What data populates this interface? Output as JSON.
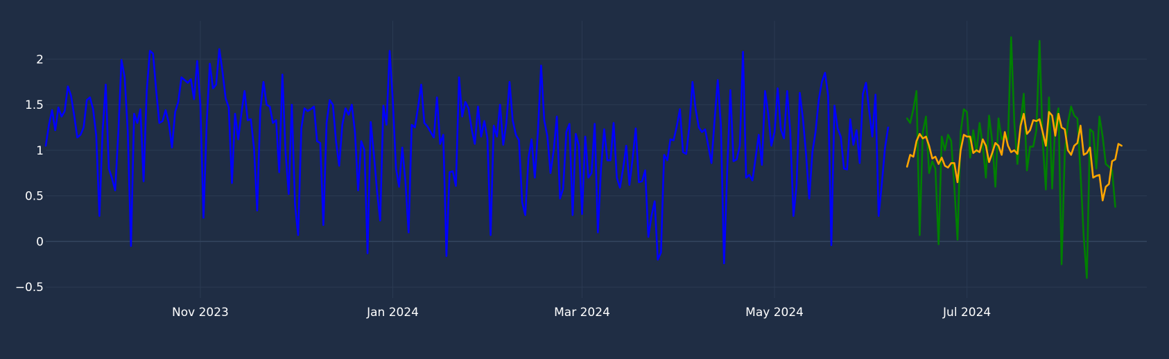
{
  "chart_data": {
    "type": "line",
    "x_start": "2023-09-13",
    "x_range": [
      "2023-09-13",
      "2024-08-27"
    ],
    "ylim": [
      -0.62,
      2.42
    ],
    "grid": true,
    "background": "#1f2d44",
    "grid_color": "#2b3b52",
    "tick_color": "#ffffff",
    "x_ticks": [
      {
        "date": "2023-11-01",
        "label": "Nov 2023"
      },
      {
        "date": "2024-01-01",
        "label": "Jan 2024"
      },
      {
        "date": "2024-03-01",
        "label": "Mar 2024"
      },
      {
        "date": "2024-05-01",
        "label": "May 2024"
      },
      {
        "date": "2024-07-01",
        "label": "Jul 2024"
      }
    ],
    "y_ticks": [
      {
        "value": -0.5,
        "label": "−0.5"
      },
      {
        "value": 0,
        "label": "0"
      },
      {
        "value": 0.5,
        "label": "0.5"
      },
      {
        "value": 1,
        "label": "1"
      },
      {
        "value": 1.5,
        "label": "1.5"
      },
      {
        "value": 2,
        "label": "2"
      }
    ],
    "series": [
      {
        "color": "#0000ff",
        "start": "2023-09-13",
        "values": [
          1.05,
          1.28,
          1.44,
          1.22,
          1.47,
          1.37,
          1.43,
          1.7,
          1.6,
          1.38,
          1.14,
          1.17,
          1.25,
          1.55,
          1.58,
          1.45,
          1.16,
          0.28,
          1.2,
          1.72,
          0.8,
          0.69,
          0.56,
          1.2,
          1.99,
          1.8,
          1.2,
          -0.05,
          1.4,
          1.3,
          1.45,
          0.66,
          1.65,
          2.09,
          2.06,
          1.65,
          1.3,
          1.32,
          1.44,
          1.3,
          1.03,
          1.42,
          1.53,
          1.8,
          1.77,
          1.74,
          1.78,
          1.56,
          1.98,
          1.5,
          0.26,
          1.3,
          1.95,
          1.68,
          1.72,
          2.11,
          1.87,
          1.57,
          1.47,
          0.64,
          1.4,
          1.12,
          1.4,
          1.65,
          1.33,
          1.34,
          1.03,
          0.34,
          1.44,
          1.75,
          1.5,
          1.48,
          1.3,
          1.33,
          0.76,
          1.83,
          0.98,
          0.52,
          1.5,
          0.4,
          0.07,
          1.24,
          1.46,
          1.43,
          1.45,
          1.48,
          1.1,
          1.08,
          0.18,
          1.3,
          1.55,
          1.5,
          1.1,
          0.83,
          1.28,
          1.46,
          1.39,
          1.5,
          1.2,
          0.56,
          1.1,
          1.0,
          -0.13,
          1.31,
          0.96,
          0.55,
          0.23,
          1.49,
          1.28,
          2.09,
          1.55,
          0.8,
          0.6,
          1.03,
          0.66,
          0.1,
          1.28,
          1.25,
          1.47,
          1.72,
          1.3,
          1.26,
          1.2,
          1.14,
          1.58,
          1.07,
          1.17,
          -0.16,
          0.76,
          0.77,
          0.61,
          1.8,
          1.37,
          1.53,
          1.46,
          1.23,
          1.07,
          1.48,
          1.15,
          1.32,
          1.13,
          0.07,
          1.27,
          1.15,
          1.5,
          1.06,
          1.3,
          1.75,
          1.33,
          1.17,
          1.11,
          0.43,
          0.29,
          0.92,
          1.12,
          0.7,
          1.2,
          1.93,
          1.33,
          1.15,
          0.75,
          1.0,
          1.37,
          0.47,
          0.58,
          1.2,
          1.29,
          0.29,
          1.18,
          1.05,
          0.3,
          1.15,
          0.7,
          0.75,
          1.29,
          0.1,
          0.8,
          1.23,
          0.89,
          0.89,
          1.3,
          0.7,
          0.59,
          0.8,
          1.05,
          0.62,
          0.9,
          1.24,
          0.65,
          0.66,
          0.78,
          0.05,
          0.28,
          0.44,
          -0.2,
          -0.12,
          0.95,
          0.89,
          1.12,
          1.11,
          1.26,
          1.45,
          0.98,
          0.96,
          1.26,
          1.75,
          1.45,
          1.25,
          1.2,
          1.23,
          1.05,
          0.86,
          1.33,
          1.77,
          1.28,
          -0.24,
          0.77,
          1.66,
          0.88,
          0.9,
          1.05,
          2.08,
          0.7,
          0.73,
          0.67,
          0.92,
          1.17,
          0.84,
          1.65,
          1.4,
          1.05,
          1.2,
          1.68,
          1.23,
          1.13,
          1.65,
          1.2,
          0.28,
          0.62,
          1.63,
          1.35,
          0.95,
          0.47,
          0.98,
          1.2,
          1.55,
          1.75,
          1.85,
          1.6,
          -0.04,
          1.49,
          1.24,
          1.15,
          0.8,
          0.79,
          1.34,
          1.06,
          1.22,
          0.86,
          1.62,
          1.74,
          1.43,
          1.15,
          1.61,
          0.28,
          0.63,
          1.02,
          1.25
        ]
      },
      {
        "color": "#008000",
        "start": "2024-06-12",
        "values": [
          1.35,
          1.3,
          1.45,
          1.65,
          0.07,
          1.2,
          1.37,
          0.75,
          0.88,
          0.8,
          -0.03,
          1.15,
          1.0,
          1.17,
          1.1,
          0.6,
          0.02,
          1.2,
          1.45,
          1.42,
          0.92,
          1.22,
          0.98,
          1.3,
          1.05,
          0.7,
          1.38,
          1.1,
          0.6,
          1.35,
          1.12,
          1.17,
          1.12,
          2.24,
          1.3,
          0.85,
          1.3,
          1.62,
          0.78,
          1.04,
          1.04,
          1.22,
          2.2,
          1.1,
          0.57,
          1.58,
          0.58,
          1.3,
          1.46,
          -0.25,
          0.98,
          1.3,
          1.48,
          1.38,
          1.35,
          0.75,
          0.05,
          -0.4,
          1.23,
          1.2,
          0.8,
          1.37,
          1.15,
          0.85,
          0.82,
          0.78,
          0.38
        ]
      },
      {
        "color": "#ffa500",
        "start": "2024-06-12",
        "values": [
          0.82,
          0.95,
          0.93,
          1.1,
          1.18,
          1.13,
          1.15,
          1.05,
          0.91,
          0.93,
          0.85,
          0.92,
          0.83,
          0.81,
          0.86,
          0.86,
          0.65,
          1.0,
          1.17,
          1.15,
          1.15,
          0.97,
          1.0,
          0.98,
          1.12,
          1.05,
          0.87,
          0.97,
          1.08,
          1.05,
          0.95,
          1.2,
          1.05,
          0.98,
          1.0,
          0.96,
          1.27,
          1.4,
          1.18,
          1.22,
          1.33,
          1.32,
          1.34,
          1.2,
          1.05,
          1.42,
          1.38,
          1.16,
          1.4,
          1.25,
          1.23,
          1.0,
          0.95,
          1.05,
          1.08,
          1.27,
          0.95,
          0.97,
          1.03,
          0.7,
          0.72,
          0.73,
          0.45,
          0.6,
          0.63,
          0.88,
          0.9,
          1.07,
          1.05
        ]
      }
    ]
  }
}
